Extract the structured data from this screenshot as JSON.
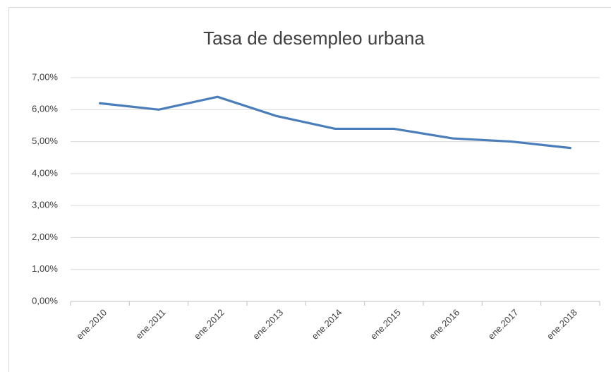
{
  "chart_data": {
    "type": "line",
    "title": "Tasa de desempleo urbana",
    "categories": [
      "ene.2010",
      "ene.2011",
      "ene.2012",
      "ene.2013",
      "ene.2014",
      "ene.2015",
      "ene.2016",
      "ene.2017",
      "ene.2018"
    ],
    "series": [
      {
        "color": "#4a7ebb",
        "values": [
          6.2,
          6.0,
          6.4,
          5.8,
          5.4,
          5.4,
          5.1,
          5.0,
          4.8
        ]
      }
    ],
    "ylim": [
      0,
      7
    ],
    "yticks": [
      {
        "value": 0,
        "label": "0,00%"
      },
      {
        "value": 1,
        "label": "1,00%"
      },
      {
        "value": 2,
        "label": "2,00%"
      },
      {
        "value": 3,
        "label": "3,00%"
      },
      {
        "value": 4,
        "label": "4,00%"
      },
      {
        "value": 5,
        "label": "5,00%"
      },
      {
        "value": 6,
        "label": "6,00%"
      },
      {
        "value": 7,
        "label": "7,00%"
      }
    ],
    "grid": true
  }
}
